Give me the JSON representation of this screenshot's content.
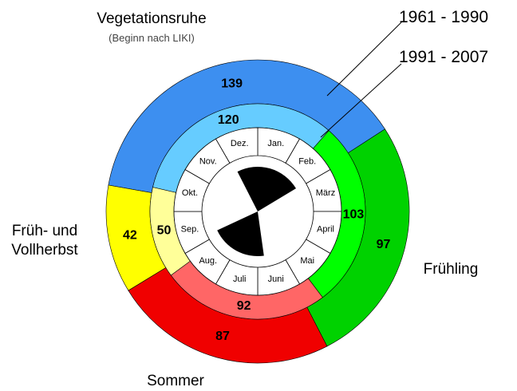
{
  "chart_data": {
    "type": "donut",
    "categories": [
      "Vegetationsruhe",
      "Frühling",
      "Sommer",
      "Früh- und Vollherbst"
    ],
    "annotation": "(Beginn nach LIKI)",
    "series": [
      {
        "name": "1961 - 1990",
        "colors": [
          "#3d8ff0",
          "#00d200",
          "#f00000",
          "#ffff00"
        ],
        "values": [
          139,
          97,
          87,
          42
        ]
      },
      {
        "name": "1991 - 2007",
        "colors": [
          "#66ccff",
          "#00ff00",
          "#ff6666",
          "#ffff99"
        ],
        "values": [
          120,
          103,
          92,
          50
        ]
      }
    ],
    "months": [
      "Jan.",
      "Feb.",
      "März",
      "April",
      "Mai",
      "Juni",
      "Juli",
      "Aug.",
      "Sep.",
      "Okt.",
      "Nov.",
      "Dez."
    ]
  }
}
